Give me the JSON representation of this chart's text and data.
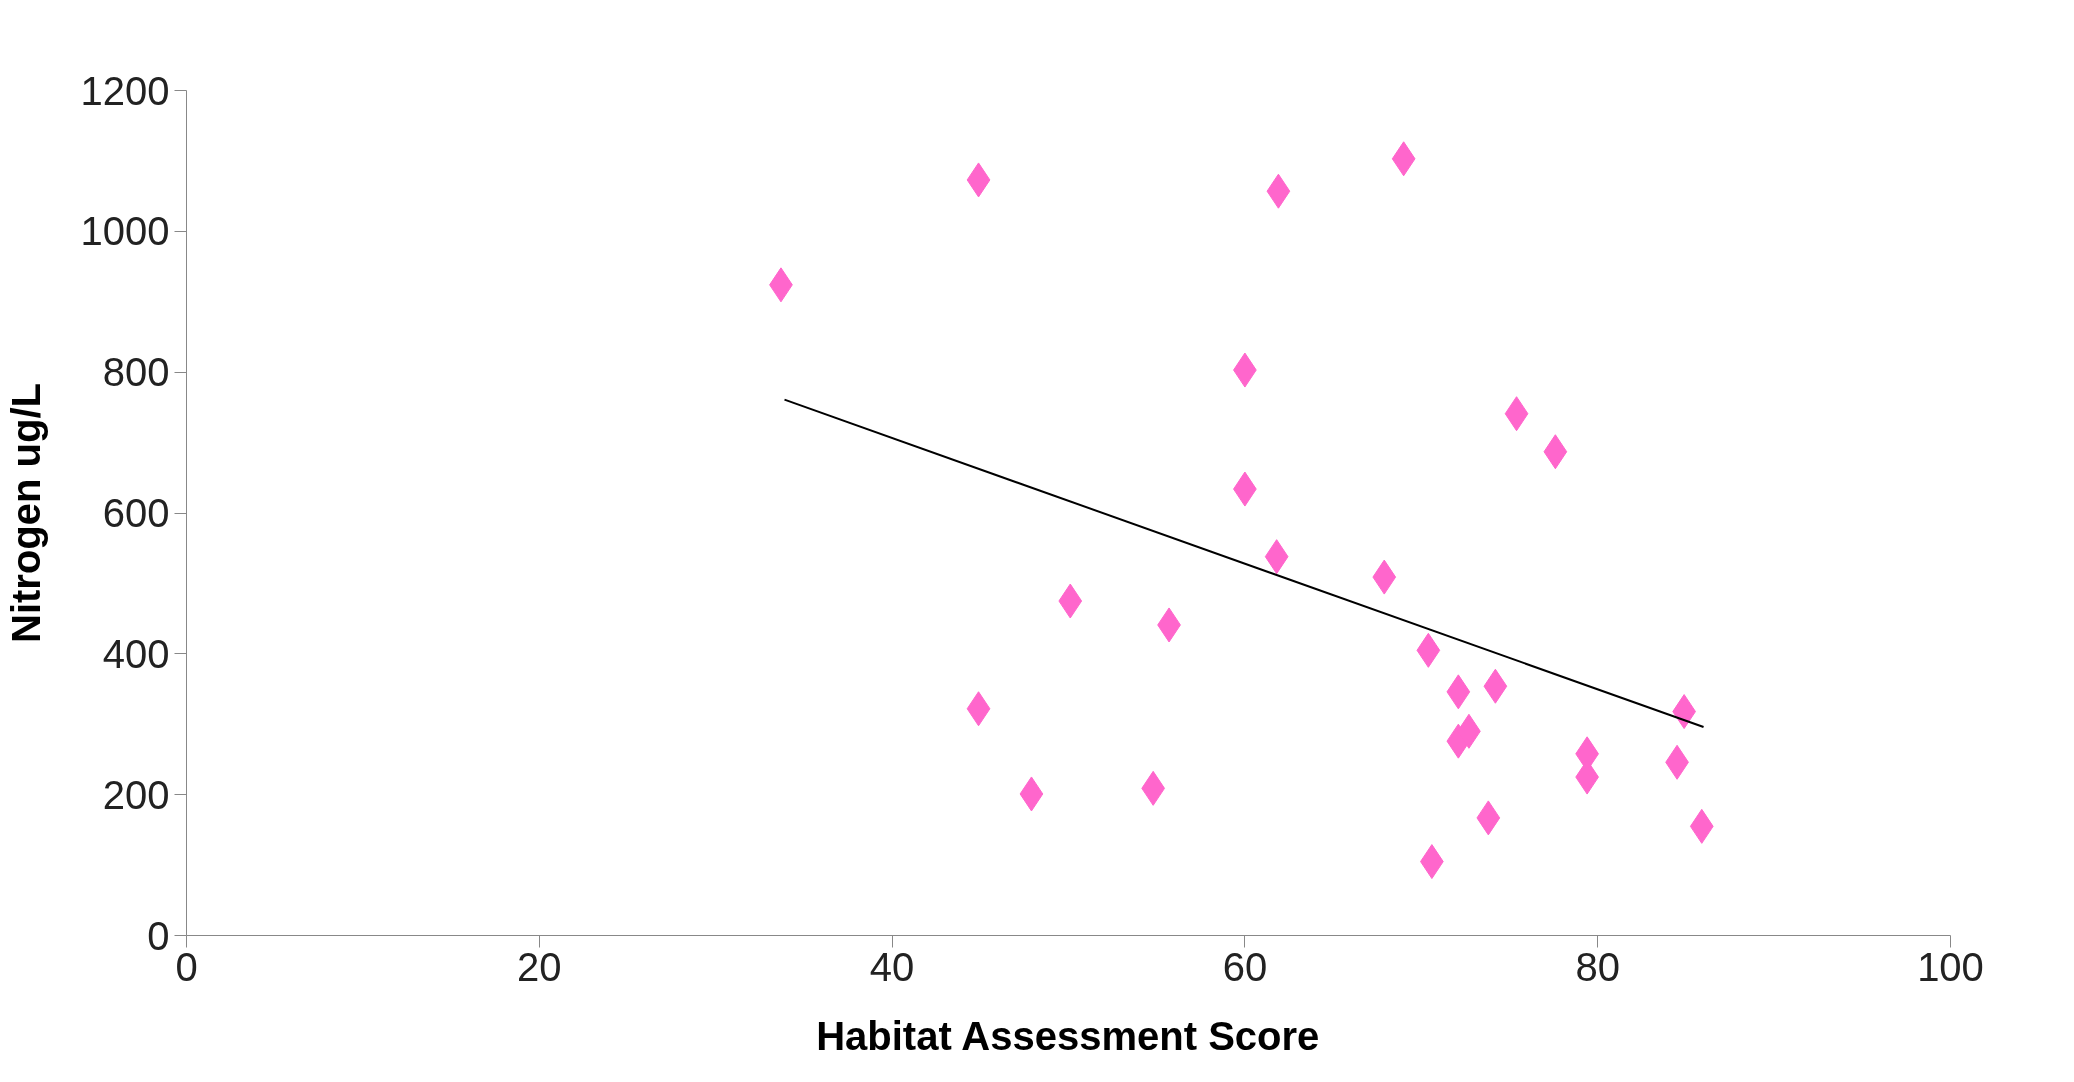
{
  "chart_data": {
    "type": "scatter",
    "xlabel": "Habitat Assessment Score",
    "ylabel": "Nitrogen ug/L",
    "xlim": [
      0,
      100
    ],
    "xticks": [
      0,
      20,
      40,
      60,
      80,
      100
    ],
    "ylim": [
      0,
      1200
    ],
    "yticks": [
      0,
      200,
      400,
      600,
      800,
      1000,
      1200
    ],
    "series": [
      {
        "marker": "diamond",
        "color": "#ff66cc",
        "x": [
          33.7,
          44.9,
          44.9,
          47.9,
          50.1,
          54.8,
          55.7,
          60.0,
          60.0,
          61.9,
          61.8,
          67.9,
          69.0,
          70.4,
          70.6,
          72.1,
          72.1,
          72.7,
          73.8,
          74.2,
          75.4,
          77.6,
          79.4,
          79.4,
          84.5,
          84.9,
          85.9
        ],
        "values": [
          924,
          1073,
          322,
          201,
          475,
          209,
          441,
          803,
          634,
          1057,
          538,
          509,
          1103,
          405,
          105,
          346,
          276,
          290,
          167,
          354,
          741,
          687,
          258,
          225,
          246,
          318,
          155
        ]
      },
      {
        "type": "line",
        "color": "#000000",
        "x": [
          33.9,
          86.0
        ],
        "values": [
          761,
          296
        ]
      }
    ]
  }
}
